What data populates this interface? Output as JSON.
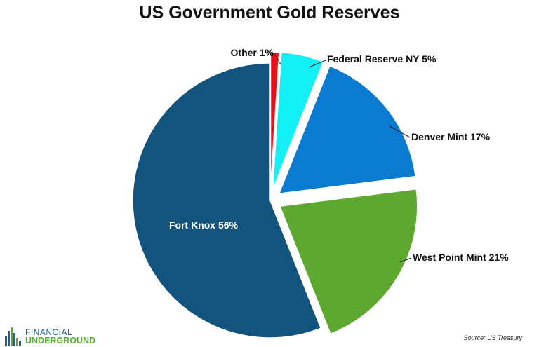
{
  "chart_data": {
    "type": "pie",
    "title": "US Government Gold Reserves",
    "slices": [
      {
        "label": "Other 1%",
        "name": "Other",
        "value": 1,
        "color": "#e8101a",
        "exploded": true
      },
      {
        "label": "Federal Reserve NY 5%",
        "name": "Federal Reserve NY",
        "value": 5,
        "color": "#12f0f5",
        "exploded": true
      },
      {
        "label": "Denver Mint 17%",
        "name": "Denver Mint",
        "value": 17,
        "color": "#0a7bd0",
        "exploded": true
      },
      {
        "label": "West Point Mint 21%",
        "name": "West Point Mint",
        "value": 21,
        "color": "#5ea832",
        "exploded": true
      },
      {
        "label": "Fort Knox 56%",
        "name": "Fort Knox",
        "value": 56,
        "color": "#12547e",
        "exploded": false
      }
    ]
  },
  "footer": {
    "logo_top": "FINANCIAL",
    "logo_bottom": "UNDERGROUND",
    "source": "Source: US Treasury"
  }
}
